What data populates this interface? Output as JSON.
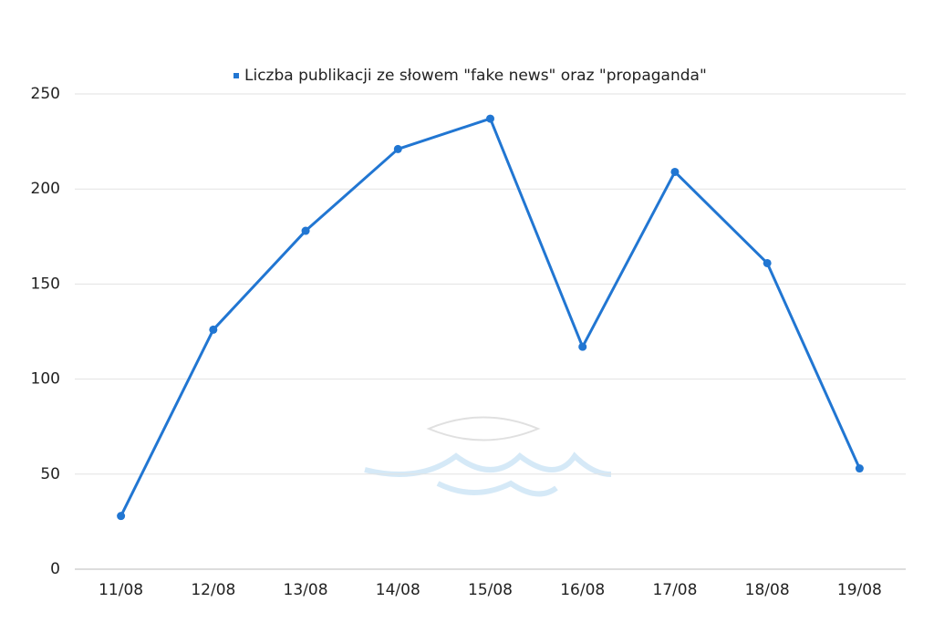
{
  "chart_data": {
    "type": "line",
    "categories": [
      "11/08",
      "12/08",
      "13/08",
      "14/08",
      "15/08",
      "16/08",
      "17/08",
      "18/08",
      "19/08"
    ],
    "series": [
      {
        "name": "Liczba publikacji ze słowem \"fake news\" oraz \"propaganda\"",
        "color": "#2176d2",
        "values": [
          28,
          126,
          178,
          221,
          237,
          117,
          209,
          161,
          53
        ]
      }
    ],
    "ylim": [
      0,
      250
    ],
    "yticks": [
      0,
      50,
      100,
      150,
      200,
      250
    ],
    "grid": true,
    "legend": "top"
  }
}
